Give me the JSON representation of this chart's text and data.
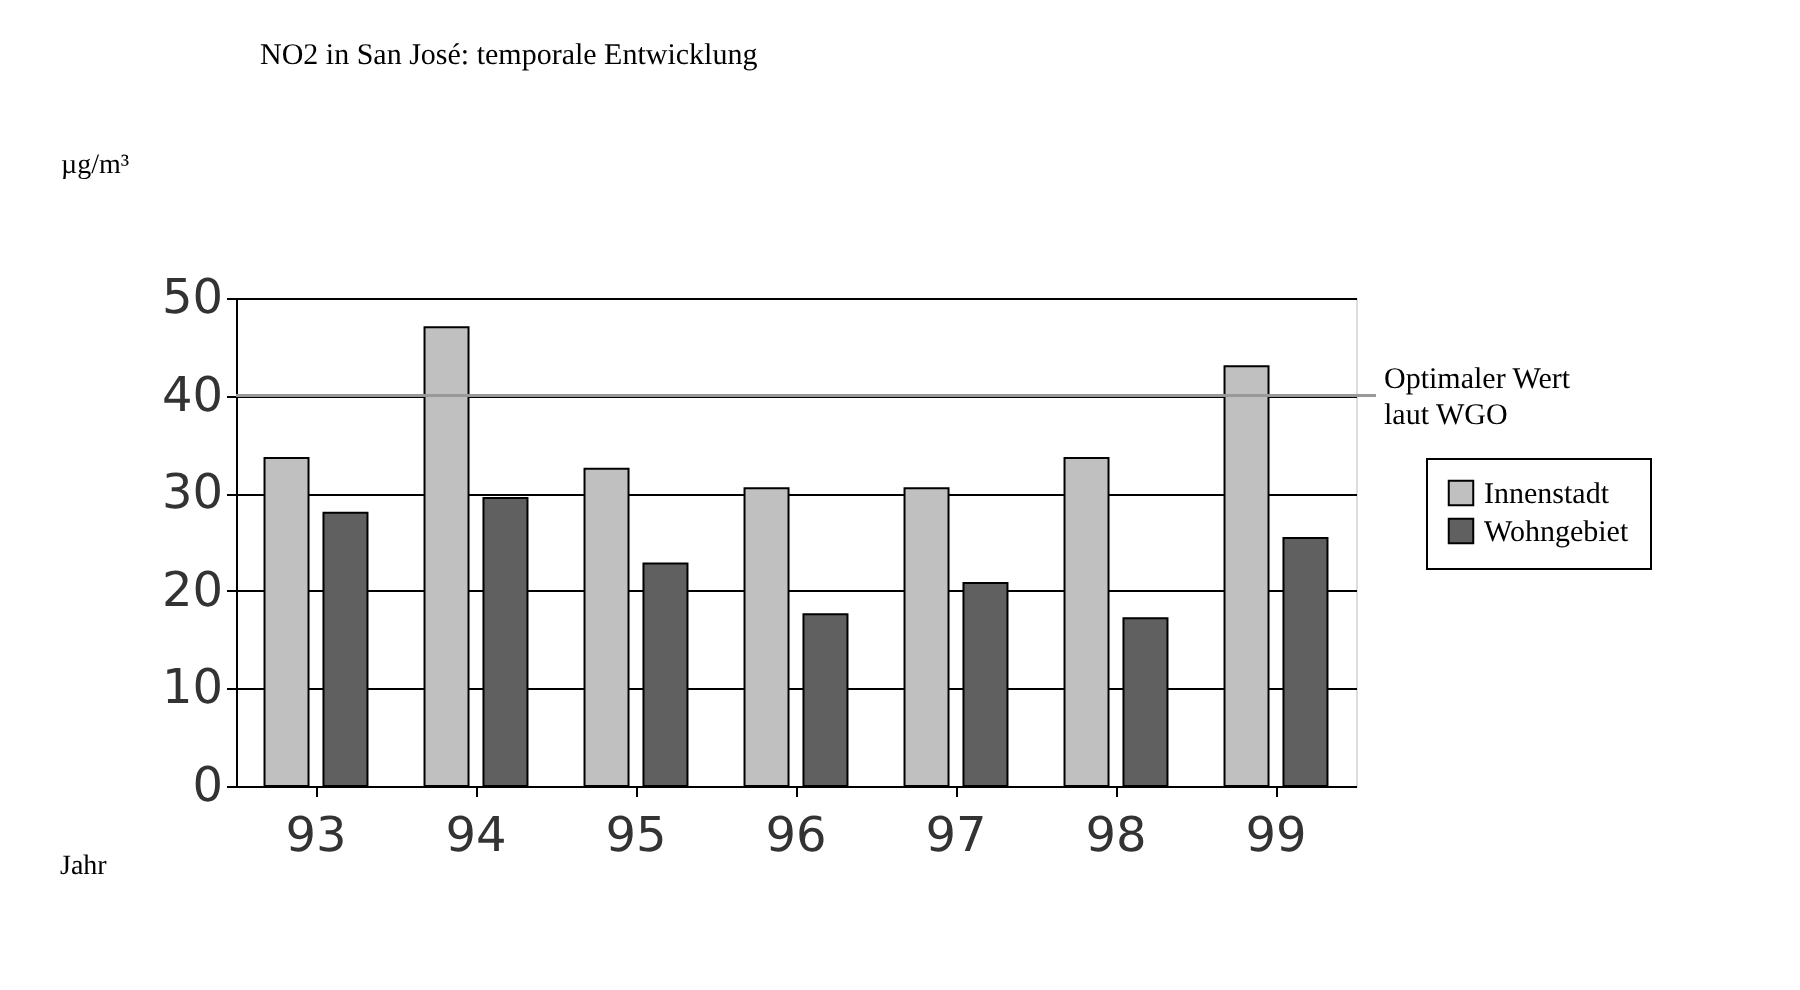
{
  "chart_data": {
    "type": "bar",
    "title": "NO2 in San José: temporale Entwicklung",
    "ylabel": "µg/m³",
    "categories": [
      "93",
      "94",
      "95",
      "96",
      "97",
      "98",
      "99"
    ],
    "series": [
      {
        "name": "Innenstadt",
        "color": "#c0c0c0",
        "values": [
          33.6,
          47,
          32.5,
          30.5,
          30.5,
          33.6,
          43
        ]
      },
      {
        "name": "Wohngebiet",
        "color": "#606060",
        "values": [
          28,
          29.5,
          22.8,
          17.6,
          20.8,
          17.2,
          25.4
        ]
      }
    ],
    "ylim": [
      0,
      50
    ],
    "yticks": [
      0,
      10,
      20,
      30,
      40,
      50
    ],
    "grid": "y",
    "legend": "right",
    "ref_lines": [
      {
        "axis": "y",
        "value": 40,
        "label": "Optimaler Wert laut WGO",
        "color": "#999999"
      }
    ],
    "annotations": [
      "Jahr"
    ]
  }
}
